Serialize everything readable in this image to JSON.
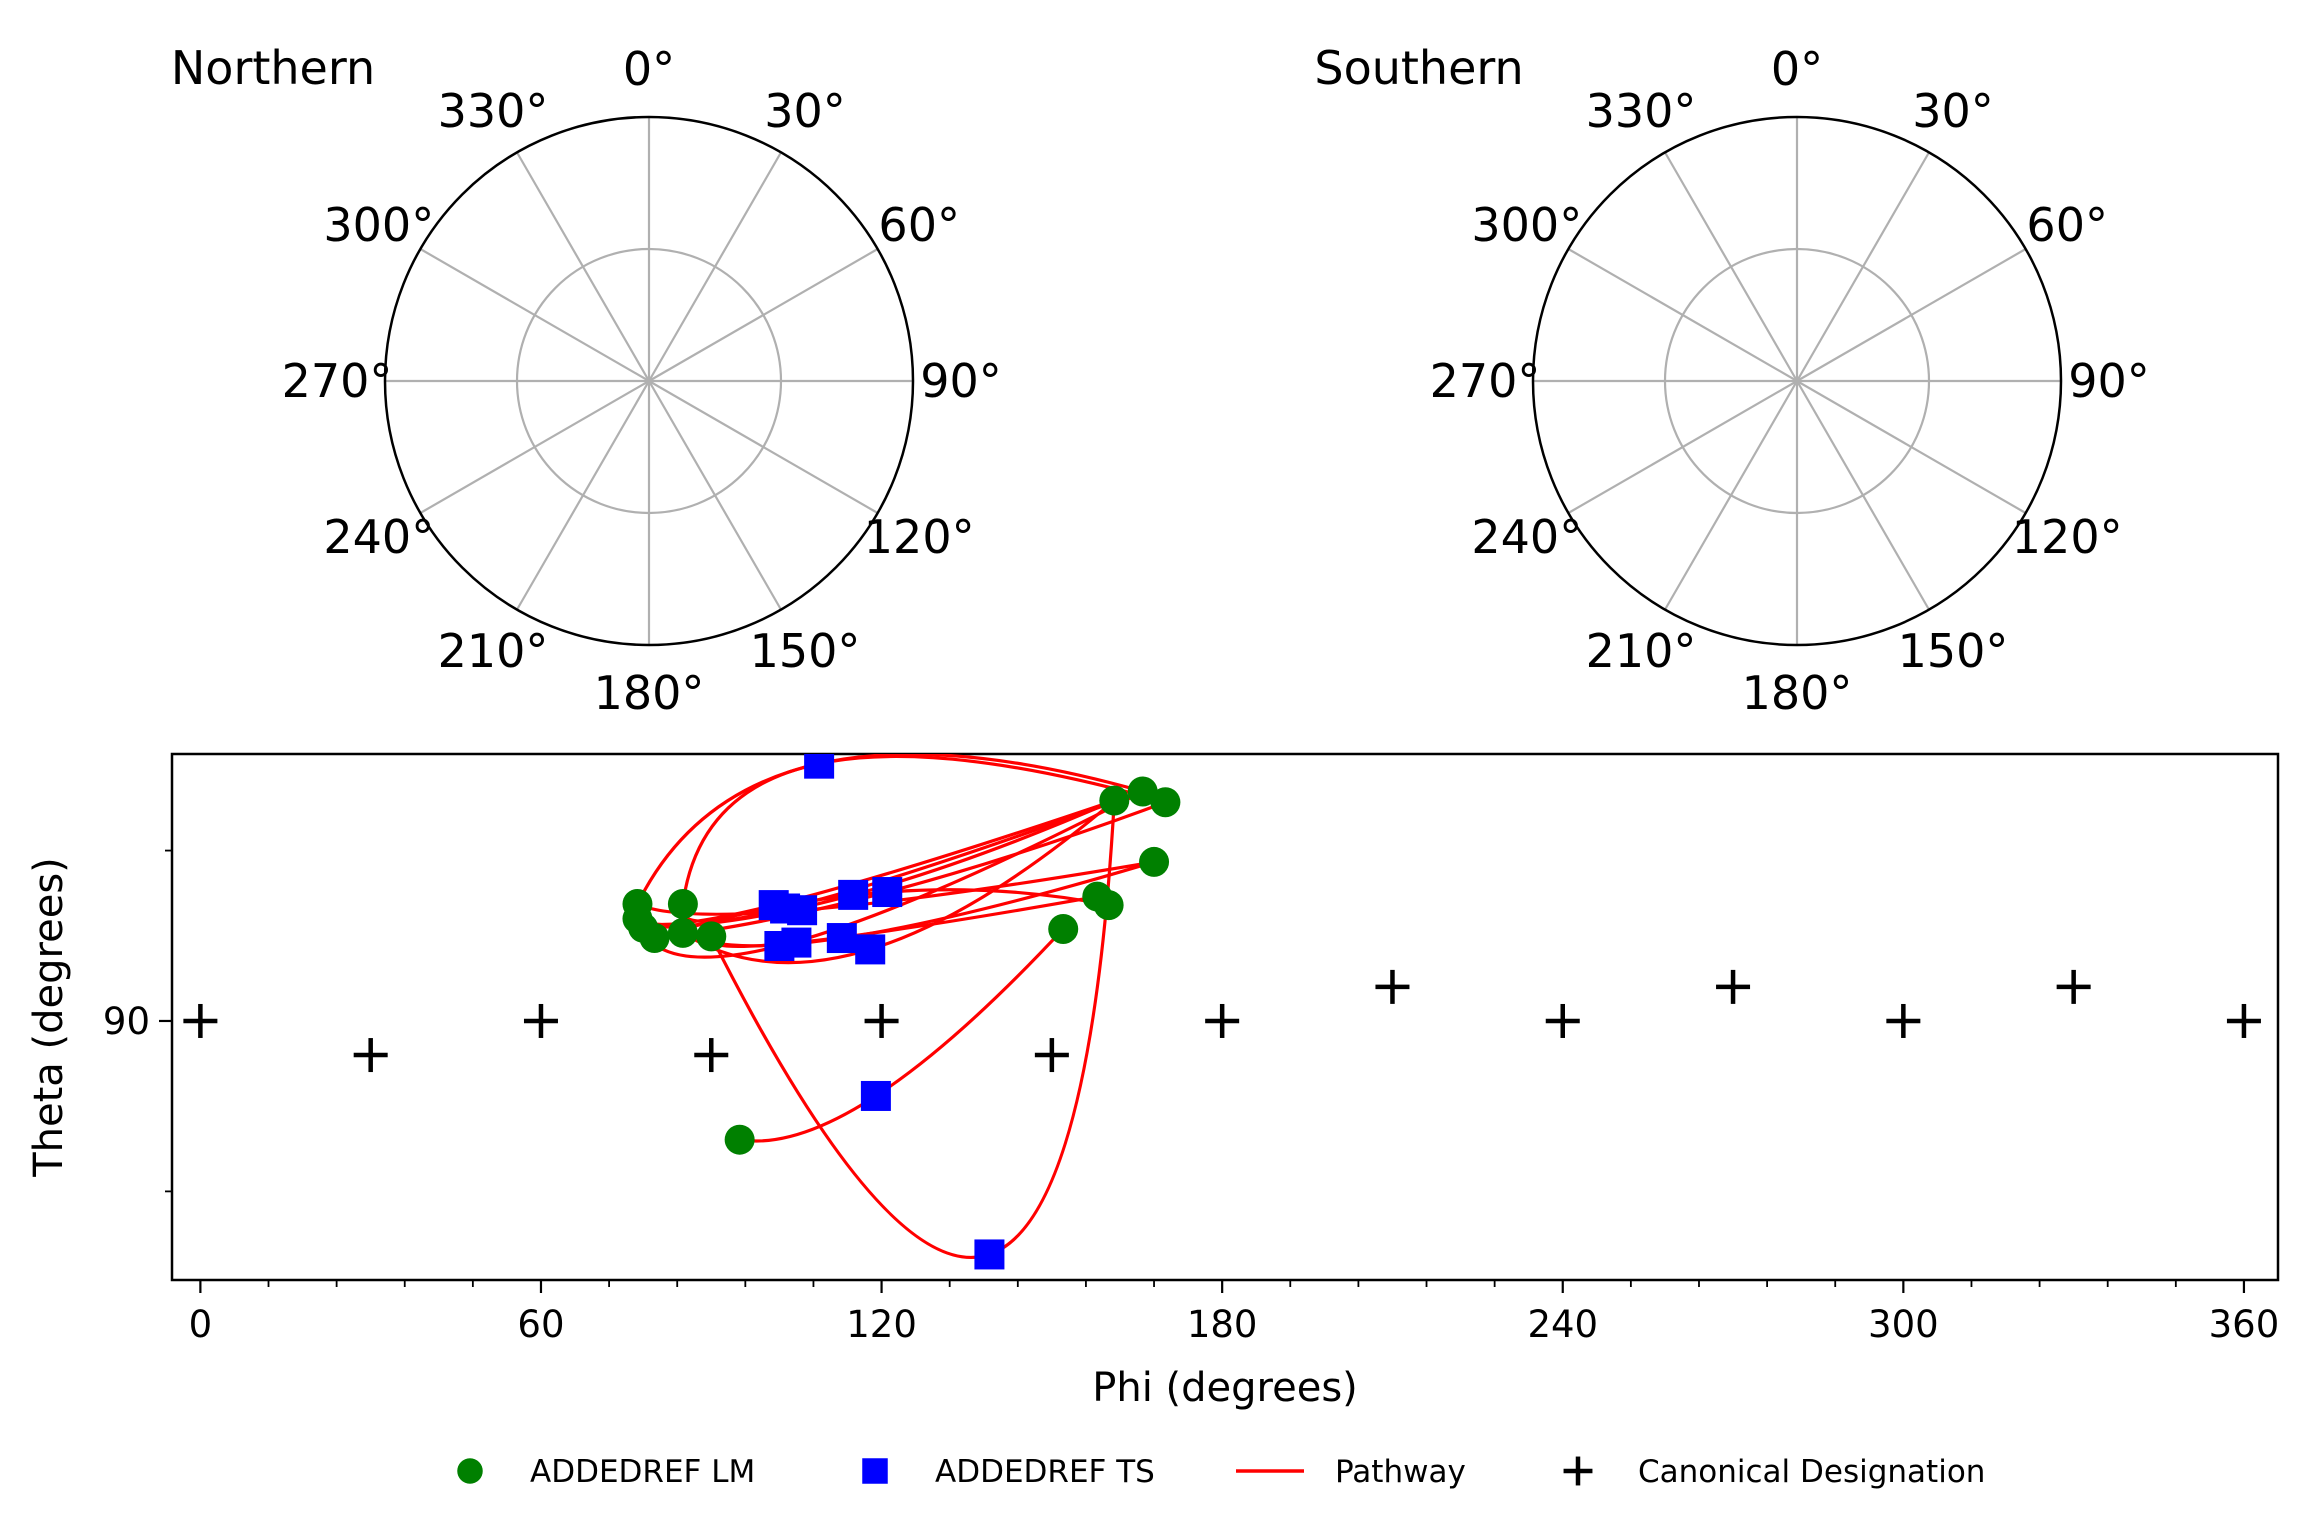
{
  "figure": {
    "panels": [
      "Northern",
      "Southern"
    ],
    "polar_ticks": [
      "0°",
      "30°",
      "60°",
      "90°",
      "120°",
      "150°",
      "180°",
      "210°",
      "240°",
      "270°",
      "300°",
      "330°"
    ]
  },
  "chart_data": {
    "type": "scatter",
    "xlabel": "Phi (degrees)",
    "ylabel": "Theta (degrees)",
    "xlim": [
      -5,
      366
    ],
    "ylim": [
      44.4,
      137
    ],
    "xticks": [
      0,
      60,
      120,
      180,
      240,
      300,
      360
    ],
    "yticks": [
      90
    ],
    "grid": false,
    "legend_position": "bottom",
    "legend": [
      "ADDEDREF LM",
      "ADDEDREF TS",
      "Pathway",
      "Canonical Designation"
    ],
    "colors": {
      "lm": "#008000",
      "ts": "#0000ff",
      "pathway": "#ff0000",
      "canonical": "#000000"
    },
    "series": [
      {
        "name": "ADDEDREF LM",
        "marker": "circle",
        "points": [
          [
            77,
            110.6
          ],
          [
            77,
            108.0
          ],
          [
            78,
            106.4
          ],
          [
            80,
            104.6
          ],
          [
            85,
            105.5
          ],
          [
            85,
            110.6
          ],
          [
            90,
            104.9
          ],
          [
            95,
            69.1
          ],
          [
            152,
            106.2
          ],
          [
            158,
            111.9
          ],
          [
            160,
            110.4
          ],
          [
            161,
            128.8
          ],
          [
            166,
            130.4
          ],
          [
            168,
            118.0
          ],
          [
            170,
            128.5
          ]
        ]
      },
      {
        "name": "ADDEDREF TS",
        "marker": "square",
        "points": [
          [
            101,
            110.4
          ],
          [
            102,
            103.2
          ],
          [
            103,
            109.8
          ],
          [
            105,
            103.8
          ],
          [
            106,
            109.5
          ],
          [
            109,
            135.3
          ],
          [
            113,
            104.6
          ],
          [
            115,
            112.2
          ],
          [
            118,
            102.6
          ],
          [
            119,
            76.8
          ],
          [
            121,
            112.7
          ],
          [
            139,
            48.9
          ]
        ]
      },
      {
        "name": "Canonical Designation",
        "marker": "plus",
        "points": [
          [
            0,
            90
          ],
          [
            30,
            84
          ],
          [
            60,
            90
          ],
          [
            90,
            84
          ],
          [
            120,
            90
          ],
          [
            150,
            84
          ],
          [
            180,
            90
          ],
          [
            210,
            96
          ],
          [
            240,
            90
          ],
          [
            270,
            96
          ],
          [
            300,
            90
          ],
          [
            330,
            96
          ],
          [
            360,
            90
          ]
        ]
      }
    ],
    "pathways": [
      [
        [
          77,
          110.6
        ],
        [
          109,
          135.3
        ],
        [
          166,
          130.4
        ]
      ],
      [
        [
          85,
          110.6
        ],
        [
          109,
          135.3
        ],
        [
          170,
          128.5
        ]
      ],
      [
        [
          77,
          108.0
        ],
        [
          101,
          110.4
        ],
        [
          161,
          128.8
        ]
      ],
      [
        [
          85,
          110.6
        ],
        [
          103,
          109.8
        ],
        [
          166,
          130.4
        ]
      ],
      [
        [
          77,
          110.6
        ],
        [
          106,
          109.5
        ],
        [
          168,
          118.0
        ]
      ],
      [
        [
          78,
          106.4
        ],
        [
          115,
          112.2
        ],
        [
          161,
          128.8
        ]
      ],
      [
        [
          80,
          104.6
        ],
        [
          121,
          112.7
        ],
        [
          170,
          128.5
        ]
      ],
      [
        [
          85,
          105.5
        ],
        [
          118,
          102.6
        ],
        [
          161,
          128.8
        ]
      ],
      [
        [
          90,
          104.9
        ],
        [
          105,
          103.8
        ],
        [
          158,
          111.9
        ]
      ],
      [
        [
          77,
          108.0
        ],
        [
          102,
          103.2
        ],
        [
          166,
          130.4
        ]
      ],
      [
        [
          85,
          105.5
        ],
        [
          113,
          104.6
        ],
        [
          168,
          118.0
        ]
      ],
      [
        [
          80,
          104.6
        ],
        [
          121,
          112.7
        ],
        [
          160,
          110.4
        ]
      ],
      [
        [
          90,
          104.9
        ],
        [
          139,
          48.9
        ],
        [
          161,
          128.8
        ]
      ],
      [
        [
          95,
          69.1
        ],
        [
          119,
          76.8
        ],
        [
          152,
          106.2
        ]
      ]
    ]
  }
}
